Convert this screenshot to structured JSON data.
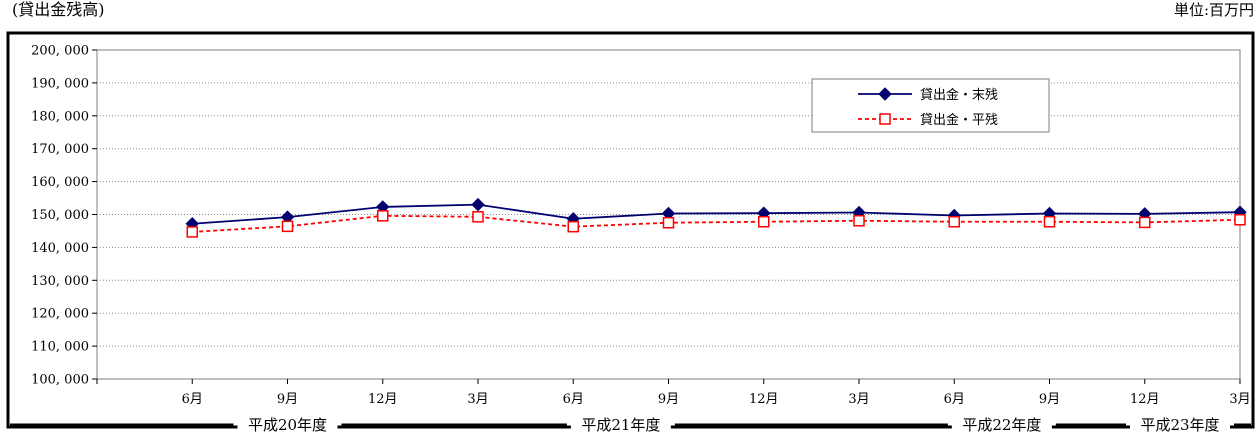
{
  "caption": {
    "left": "(貸出金残高)",
    "right": "単位:百万円"
  },
  "chart_data": {
    "type": "line",
    "categories": [
      "6月",
      "9月",
      "12月",
      "3月",
      "6月",
      "9月",
      "12月",
      "3月",
      "6月",
      "9月",
      "12月",
      "3月"
    ],
    "fiscal_years": [
      {
        "label": "平成20年度",
        "first_category_index": 0,
        "last_category_index": 2
      },
      {
        "label": "平成21年度",
        "first_category_index": 3,
        "last_category_index": 6
      },
      {
        "label": "平成22年度",
        "first_category_index": 7,
        "last_category_index": 10
      },
      {
        "label": "平成23年度",
        "first_category_index": 11,
        "last_category_index": 11
      }
    ],
    "series": [
      {
        "name": "貸出金・末残",
        "color": "#00006e",
        "line_style": "solid",
        "marker": "diamond-filled",
        "values": [
          147200,
          149200,
          152300,
          153000,
          148700,
          150300,
          150400,
          150600,
          149700,
          150300,
          150200,
          150700
        ]
      },
      {
        "name": "貸出金・平残",
        "color": "#ff0000",
        "line_style": "dashed",
        "marker": "square-open",
        "values": [
          144700,
          146400,
          149600,
          149300,
          146300,
          147500,
          147800,
          148100,
          147800,
          147800,
          147600,
          148400
        ]
      }
    ],
    "y_ticks": [
      "100, 000",
      "110, 000",
      "120, 000",
      "130, 000",
      "140, 000",
      "150, 000",
      "160, 000",
      "170, 000",
      "180, 000",
      "190, 000",
      "200, 000"
    ],
    "ylim": [
      100000,
      200000
    ],
    "grid": "horizontal-dotted",
    "legend_position": "top-right"
  }
}
